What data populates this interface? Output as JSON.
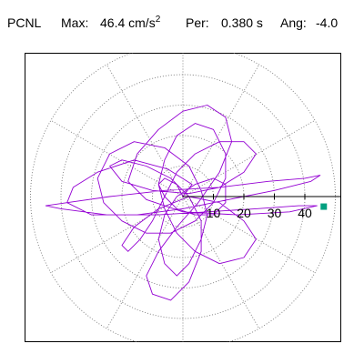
{
  "header": {
    "station": "PCNL",
    "max_label": "Max:",
    "max_value": "46.4 cm/s",
    "max_exp": "2",
    "per_label": "Per:",
    "per_value": "0.380 s",
    "ang_label": "Ang:",
    "ang_value": "-4.0"
  },
  "chart_data": {
    "type": "polar-orbit",
    "units": "cm/s^2",
    "max": 46.4,
    "period_s": 0.38,
    "angle_deg": -4.0,
    "rings": [
      10,
      20,
      30,
      40,
      50
    ],
    "spokes_deg": [
      30,
      60,
      120,
      150,
      210,
      240,
      300,
      330
    ],
    "tick_labels": [
      "10",
      "20",
      "30",
      "40"
    ],
    "trace_color": "#9400d3",
    "marker_color": "#00a080",
    "marker": {
      "x": 46.2,
      "y": -3.3
    },
    "trajectory": [
      [
        0,
        0
      ],
      [
        3,
        4
      ],
      [
        -5,
        9
      ],
      [
        -16,
        12
      ],
      [
        -28,
        8
      ],
      [
        -36,
        3
      ],
      [
        -38,
        -2
      ],
      [
        -30,
        -6
      ],
      [
        -15,
        -6
      ],
      [
        0,
        -4
      ],
      [
        15,
        -1
      ],
      [
        30,
        2
      ],
      [
        42,
        5
      ],
      [
        45,
        7
      ],
      [
        40,
        6
      ],
      [
        28,
        5
      ],
      [
        12,
        3
      ],
      [
        -6,
        2
      ],
      [
        -24,
        0
      ],
      [
        -38,
        -2
      ],
      [
        -45,
        -3
      ],
      [
        -40,
        -4
      ],
      [
        -25,
        -6
      ],
      [
        -8,
        -6
      ],
      [
        8,
        -5
      ],
      [
        24,
        -4
      ],
      [
        38,
        -3
      ],
      [
        44,
        -3
      ],
      [
        35,
        -5
      ],
      [
        18,
        -6
      ],
      [
        0,
        -5
      ],
      [
        -12,
        -1
      ],
      [
        -18,
        5
      ],
      [
        -15,
        14
      ],
      [
        -8,
        22
      ],
      [
        0,
        28
      ],
      [
        8,
        30
      ],
      [
        14,
        26
      ],
      [
        16,
        18
      ],
      [
        12,
        8
      ],
      [
        5,
        -2
      ],
      [
        -2,
        -10
      ],
      [
        -8,
        -18
      ],
      [
        -12,
        -26
      ],
      [
        -10,
        -32
      ],
      [
        -4,
        -34
      ],
      [
        2,
        -28
      ],
      [
        6,
        -18
      ],
      [
        6,
        -8
      ],
      [
        2,
        0
      ],
      [
        -4,
        6
      ],
      [
        -12,
        10
      ],
      [
        -20,
        12
      ],
      [
        -24,
        10
      ],
      [
        -20,
        5
      ],
      [
        -10,
        2
      ],
      [
        2,
        1
      ],
      [
        12,
        3
      ],
      [
        20,
        8
      ],
      [
        24,
        14
      ],
      [
        20,
        18
      ],
      [
        12,
        18
      ],
      [
        4,
        14
      ],
      [
        -2,
        8
      ],
      [
        -6,
        0
      ],
      [
        -10,
        -8
      ],
      [
        -14,
        -14
      ],
      [
        -18,
        -18
      ],
      [
        -20,
        -16
      ],
      [
        -16,
        -10
      ],
      [
        -8,
        -4
      ],
      [
        2,
        0
      ],
      [
        12,
        -2
      ],
      [
        20,
        -8
      ],
      [
        24,
        -14
      ],
      [
        20,
        -20
      ],
      [
        12,
        -22
      ],
      [
        4,
        -18
      ],
      [
        -2,
        -12
      ],
      [
        -6,
        -4
      ],
      [
        -8,
        4
      ],
      [
        -6,
        12
      ],
      [
        -2,
        20
      ],
      [
        4,
        24
      ],
      [
        10,
        22
      ],
      [
        14,
        14
      ],
      [
        14,
        6
      ],
      [
        10,
        -2
      ],
      [
        4,
        -8
      ],
      [
        -4,
        -12
      ],
      [
        -12,
        -12
      ],
      [
        -20,
        -8
      ],
      [
        -26,
        -2
      ],
      [
        -28,
        6
      ],
      [
        -24,
        14
      ],
      [
        -16,
        18
      ],
      [
        -6,
        16
      ],
      [
        2,
        10
      ],
      [
        6,
        2
      ],
      [
        8,
        -6
      ],
      [
        6,
        -14
      ],
      [
        2,
        -22
      ],
      [
        -2,
        -26
      ],
      [
        -6,
        -22
      ],
      [
        -8,
        -14
      ],
      [
        -6,
        -6
      ],
      [
        -2,
        0
      ],
      [
        4,
        4
      ],
      [
        10,
        6
      ],
      [
        14,
        4
      ],
      [
        14,
        -2
      ],
      [
        10,
        -6
      ],
      [
        4,
        -6
      ],
      [
        -2,
        -4
      ],
      [
        -6,
        0
      ],
      [
        -8,
        4
      ],
      [
        -6,
        6
      ],
      [
        -2,
        4
      ],
      [
        0,
        0
      ]
    ]
  }
}
